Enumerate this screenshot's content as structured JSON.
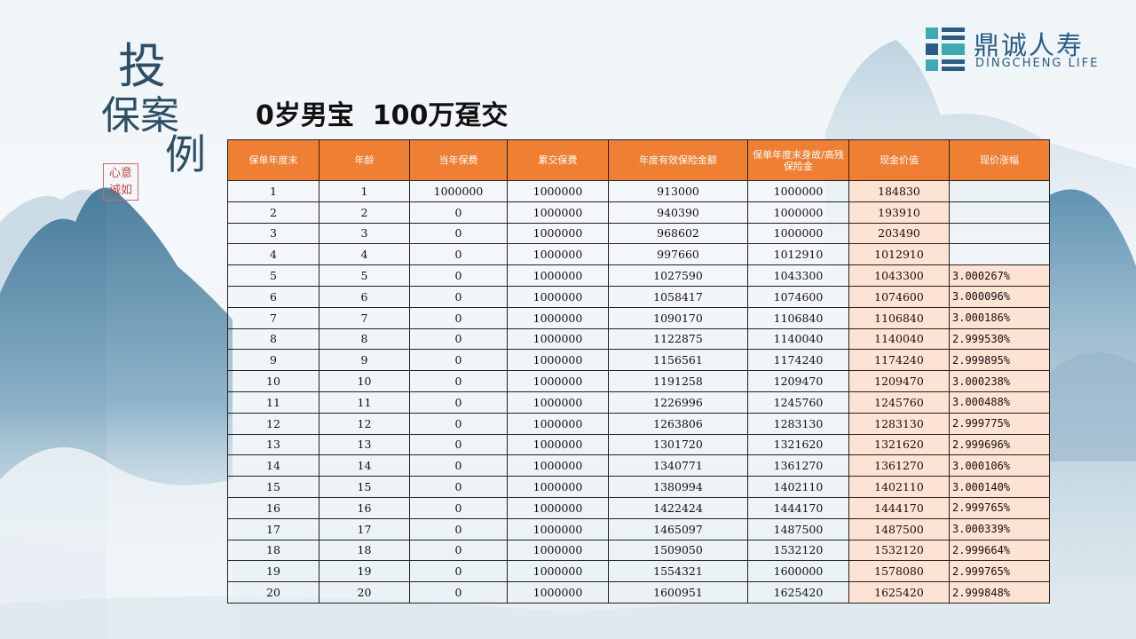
{
  "side_title": {
    "line1": "投",
    "line2": "保案",
    "line3": "例"
  },
  "seal": {
    "text": "心意诚如"
  },
  "logo": {
    "name_cn": "鼎诚人寿",
    "name_en": "DINGCHENG LIFE"
  },
  "headline": "0岁男宝  100万趸交",
  "table": {
    "headers": [
      "保单年度末",
      "年龄",
      "当年保费",
      "累交保费",
      "年度有效保险金额",
      "保单年度末身故/高残保险金",
      "现金价值",
      "现价涨幅"
    ],
    "rows": [
      [
        "1",
        "1",
        "1000000",
        "1000000",
        "913000",
        "1000000",
        "184830",
        ""
      ],
      [
        "2",
        "2",
        "0",
        "1000000",
        "940390",
        "1000000",
        "193910",
        ""
      ],
      [
        "3",
        "3",
        "0",
        "1000000",
        "968602",
        "1000000",
        "203490",
        ""
      ],
      [
        "4",
        "4",
        "0",
        "1000000",
        "997660",
        "1012910",
        "1012910",
        ""
      ],
      [
        "5",
        "5",
        "0",
        "1000000",
        "1027590",
        "1043300",
        "1043300",
        "3.000267%"
      ],
      [
        "6",
        "6",
        "0",
        "1000000",
        "1058417",
        "1074600",
        "1074600",
        "3.000096%"
      ],
      [
        "7",
        "7",
        "0",
        "1000000",
        "1090170",
        "1106840",
        "1106840",
        "3.000186%"
      ],
      [
        "8",
        "8",
        "0",
        "1000000",
        "1122875",
        "1140040",
        "1140040",
        "2.999530%"
      ],
      [
        "9",
        "9",
        "0",
        "1000000",
        "1156561",
        "1174240",
        "1174240",
        "2.999895%"
      ],
      [
        "10",
        "10",
        "0",
        "1000000",
        "1191258",
        "1209470",
        "1209470",
        "3.000238%"
      ],
      [
        "11",
        "11",
        "0",
        "1000000",
        "1226996",
        "1245760",
        "1245760",
        "3.000488%"
      ],
      [
        "12",
        "12",
        "0",
        "1000000",
        "1263806",
        "1283130",
        "1283130",
        "2.999775%"
      ],
      [
        "13",
        "13",
        "0",
        "1000000",
        "1301720",
        "1321620",
        "1321620",
        "2.999696%"
      ],
      [
        "14",
        "14",
        "0",
        "1000000",
        "1340771",
        "1361270",
        "1361270",
        "3.000106%"
      ],
      [
        "15",
        "15",
        "0",
        "1000000",
        "1380994",
        "1402110",
        "1402110",
        "3.000140%"
      ],
      [
        "16",
        "16",
        "0",
        "1000000",
        "1422424",
        "1444170",
        "1444170",
        "2.999765%"
      ],
      [
        "17",
        "17",
        "0",
        "1000000",
        "1465097",
        "1487500",
        "1487500",
        "3.000339%"
      ],
      [
        "18",
        "18",
        "0",
        "1000000",
        "1509050",
        "1532120",
        "1532120",
        "2.999664%"
      ],
      [
        "19",
        "19",
        "0",
        "1000000",
        "1554321",
        "1600000",
        "1578080",
        "2.999765%"
      ],
      [
        "20",
        "20",
        "0",
        "1000000",
        "1600951",
        "1625420",
        "1625420",
        "2.999848%"
      ]
    ]
  },
  "colors": {
    "header_orange": "#ef7f32",
    "cash_highlight": "#fde3d3",
    "title_blue": "#2c4f66",
    "logo_blue": "#2a5d86",
    "logo_teal": "#3fa9b3"
  }
}
